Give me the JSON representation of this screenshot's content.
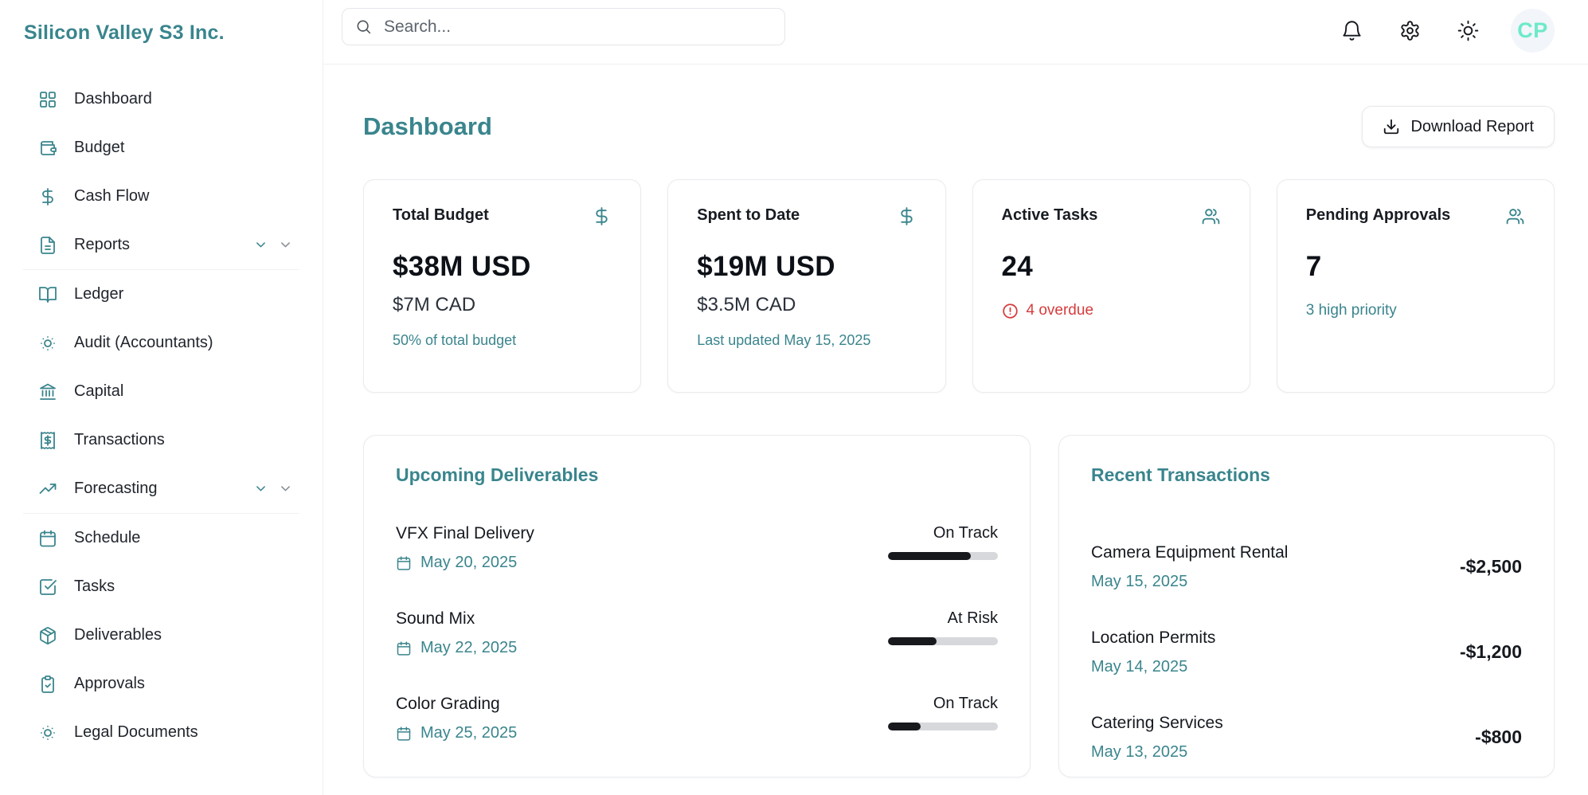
{
  "brand": "Silicon Valley S3 Inc.",
  "topbar": {
    "search_placeholder": "Search...",
    "avatar_initials": "CP"
  },
  "sidebar": {
    "items": [
      {
        "label": "Dashboard",
        "icon": "layout-grid"
      },
      {
        "label": "Budget",
        "icon": "wallet"
      },
      {
        "label": "Cash Flow",
        "icon": "dollar-sign"
      },
      {
        "label": "Reports",
        "icon": "file-text",
        "expandable": true
      },
      {
        "label": "Ledger",
        "icon": "book-open"
      },
      {
        "label": "Audit (Accountants)",
        "icon": "sun-dim"
      },
      {
        "label": "Capital",
        "icon": "landmark"
      },
      {
        "label": "Transactions",
        "icon": "receipt"
      },
      {
        "label": "Forecasting",
        "icon": "trending-up",
        "expandable": true
      },
      {
        "label": "Schedule",
        "icon": "calendar"
      },
      {
        "label": "Tasks",
        "icon": "check-square"
      },
      {
        "label": "Deliverables",
        "icon": "package"
      },
      {
        "label": "Approvals",
        "icon": "clipboard-check"
      },
      {
        "label": "Legal Documents",
        "icon": "sun-dim"
      }
    ]
  },
  "page": {
    "title": "Dashboard",
    "download_button": "Download Report"
  },
  "stats": [
    {
      "label": "Total Budget",
      "icon": "dollar-sign",
      "value": "$38M USD",
      "sub": "$7M CAD",
      "note": "50% of total budget",
      "note_color": "teal"
    },
    {
      "label": "Spent to Date",
      "icon": "dollar-sign",
      "value": "$19M USD",
      "sub": "$3.5M CAD",
      "note": "Last updated May 15, 2025",
      "note_color": "teal"
    },
    {
      "label": "Active Tasks",
      "icon": "users",
      "value": "24",
      "note": "4 overdue",
      "note_color": "red"
    },
    {
      "label": "Pending Approvals",
      "icon": "users",
      "value": "7",
      "note": "3 high priority",
      "note_color": "teal"
    }
  ],
  "deliverables": {
    "title": "Upcoming Deliverables",
    "items": [
      {
        "name": "VFX Final Delivery",
        "date": "May 20, 2025",
        "status": "On Track",
        "progress": 75
      },
      {
        "name": "Sound Mix",
        "date": "May 22, 2025",
        "status": "At Risk",
        "progress": 44
      },
      {
        "name": "Color Grading",
        "date": "May 25, 2025",
        "status": "On Track",
        "progress": 30
      }
    ]
  },
  "transactions": {
    "title": "Recent Transactions",
    "items": [
      {
        "name": "Camera Equipment Rental",
        "date": "May 15, 2025",
        "amount": "-$2,500"
      },
      {
        "name": "Location Permits",
        "date": "May 14, 2025",
        "amount": "-$1,200"
      },
      {
        "name": "Catering Services",
        "date": "May 13, 2025",
        "amount": "-$800"
      }
    ]
  },
  "colors": {
    "accent_teal": "#3a858d",
    "alert_red": "#d63c3c",
    "avatar_text": "#6ceac9",
    "progress_fill": "#17191d",
    "progress_track": "#d6d8db"
  }
}
